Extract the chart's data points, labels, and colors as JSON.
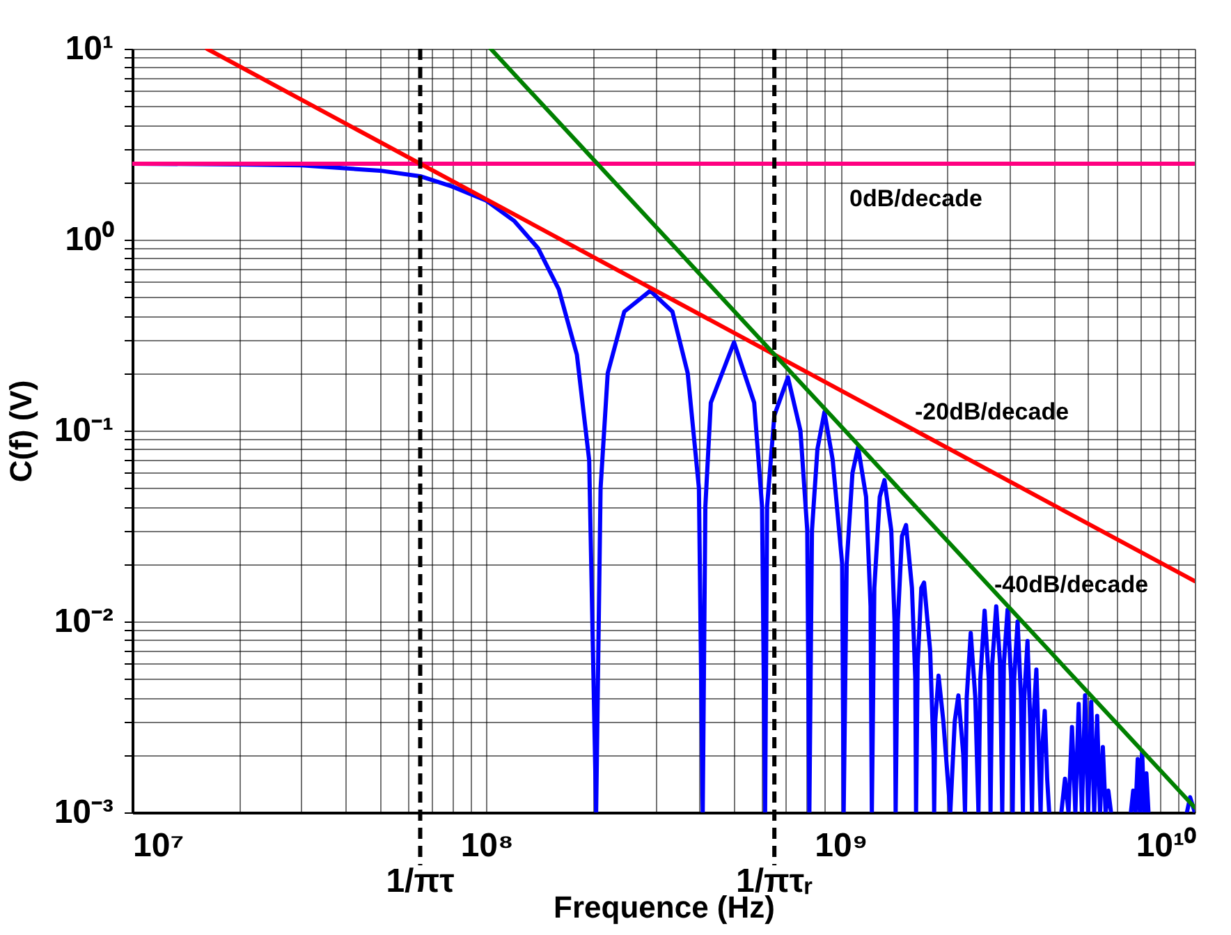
{
  "chart_data": {
    "type": "line",
    "xlabel": "Frequence (Hz)",
    "ylabel": "C(f) (V)",
    "log": "xy",
    "grid": true,
    "line_style": "solid",
    "xlim": [
      10000000.0,
      10000000000.0
    ],
    "ylim": [
      0.001,
      10
    ],
    "xticks": [
      {
        "value": 10000000.0,
        "label": "10⁷"
      },
      {
        "value": 100000000.0,
        "label": "10⁸"
      },
      {
        "value": 1000000000.0,
        "label": "10⁹"
      },
      {
        "value": 10000000000.0,
        "label": "10¹⁰"
      }
    ],
    "yticks": [
      {
        "value": 0.001,
        "label": "10⁻³"
      },
      {
        "value": 0.01,
        "label": "10⁻²"
      },
      {
        "value": 0.1,
        "label": "10⁻¹"
      },
      {
        "value": 1,
        "label": "10⁰"
      },
      {
        "value": 10,
        "label": "10¹"
      }
    ],
    "series": [
      {
        "color": "#0000ff",
        "x": [
          10000000.0,
          20000000.0,
          30000000.0,
          50000000.0,
          65000000.0,
          80000000.0,
          100000000.0,
          120000000.0,
          140000000.0,
          160000000.0,
          180000000.0,
          195000000.0,
          204000000.0,
          210000000.0,
          220000000.0,
          245000000.0,
          290000000.0,
          335000000.0,
          370000000.0,
          398000000.0,
          408000000.0,
          415000000.0,
          430000000.0,
          500000000.0,
          570000000.0,
          600000000.0,
          612000000.0,
          620000000.0,
          650000000.0,
          710000000.0,
          770000000.0,
          805000000.0,
          816000000.0,
          830000000.0,
          860000000.0,
          900000000.0,
          950000000.0,
          1010000000.0,
          1020000000.0,
          1040000000.0,
          1080000000.0,
          1120000000.0,
          1180000000.0,
          1215000000.0,
          1225000000.0,
          1245000000.0,
          1290000000.0,
          1330000000.0,
          1390000000.0,
          1420000000.0,
          1430000000.0,
          1450000000.0,
          1490000000.0,
          1530000000.0,
          1590000000.0,
          1625000000.0,
          1633000000.0,
          1650000000.0,
          1690000000.0,
          1720000000.0,
          1790000000.0,
          1830000000.0,
          1837000000.0,
          1850000000.0,
          1890000000.0,
          1950000000.0,
          2040000000.0,
          2100000000.0,
          2150000000.0,
          2220000000.0,
          2245000000.0,
          2270000000.0,
          2330000000.0,
          2400000000.0,
          2450000000.0,
          2480000000.0,
          2550000000.0,
          2620000000.0,
          2650000000.0,
          2680000000.0,
          2750000000.0,
          2820000000.0,
          2860000000.0,
          2890000000.0,
          2960000000.0,
          3030000000.0,
          3060000000.0,
          3090000000.0,
          3160000000.0,
          3230000000.0,
          3270000000.0,
          3300000000.0,
          3370000000.0,
          3430000000.0,
          3470000000.0,
          3500000000.0,
          3570000000.0,
          3630000000.0,
          3670000000.0,
          3700000000.0,
          3770000000.0,
          3830000000.0,
          3880000000.0,
          4000000000.0,
          4200000000.0,
          4300000000.0,
          4400000000.0,
          4500000000.0,
          4600000000.0,
          4700000000.0,
          4800000000.0,
          4900000000.0,
          5000000000.0,
          5100000000.0,
          5200000000.0,
          5300000000.0,
          5400000000.0,
          5500000000.0,
          5600000000.0,
          5700000000.0,
          5800000000.0,
          6200000000.0,
          6600000000.0,
          6700000000.0,
          6800000000.0,
          6900000000.0,
          7000000000.0,
          7100000000.0,
          7200000000.0,
          7300000000.0,
          7400000000.0,
          8500000000.0,
          9500000000.0,
          9700000000.0,
          10000000000.0
        ],
        "values": [
          2.5,
          2.48,
          2.45,
          2.3,
          2.15,
          1.9,
          1.6,
          1.25,
          0.9,
          0.55,
          0.25,
          0.07,
          0.001,
          0.05,
          0.2,
          0.42,
          0.54,
          0.42,
          0.2,
          0.05,
          0.001,
          0.04,
          0.14,
          0.29,
          0.14,
          0.04,
          0.001,
          0.04,
          0.12,
          0.19,
          0.1,
          0.03,
          0.001,
          0.03,
          0.08,
          0.125,
          0.07,
          0.02,
          0.001,
          0.02,
          0.06,
          0.082,
          0.045,
          0.012,
          0.001,
          0.015,
          0.045,
          0.055,
          0.03,
          0.01,
          0.001,
          0.01,
          0.028,
          0.032,
          0.015,
          0.005,
          0.001,
          0.006,
          0.015,
          0.016,
          0.007,
          0.002,
          0.001,
          0.003,
          0.0052,
          0.003,
          0.001,
          0.003,
          0.0041,
          0.002,
          0.001,
          0.004,
          0.0087,
          0.004,
          0.001,
          0.005,
          0.0114,
          0.005,
          0.001,
          0.006,
          0.012,
          0.006,
          0.001,
          0.006,
          0.0115,
          0.005,
          0.001,
          0.005,
          0.01,
          0.004,
          0.001,
          0.004,
          0.0079,
          0.003,
          0.001,
          0.003,
          0.0056,
          0.002,
          0.001,
          0.002,
          0.0034,
          0.0015,
          0.001,
          null,
          0.001,
          0.0015,
          0.001,
          0.0028,
          0.001,
          0.0037,
          0.001,
          0.0041,
          0.001,
          0.0038,
          0.001,
          0.0032,
          0.001,
          0.0022,
          0.001,
          0.0013,
          0.001,
          null,
          0.001,
          0.0013,
          0.001,
          0.0019,
          0.001,
          0.0021,
          0.001,
          0.0016,
          0.001,
          null,
          0.001,
          0.0012,
          0.001
        ]
      },
      {
        "color": "#ff0080",
        "x": [
          10000000.0,
          10000000000.0
        ],
        "values": [
          2.5,
          2.5
        ]
      },
      {
        "color": "#ff0000",
        "x": [
          16250000.0,
          10000000000.0
        ],
        "values": [
          10,
          0.01625
        ]
      },
      {
        "color": "#008000",
        "x": [
          102800000.0,
          10000000000.0
        ],
        "values": [
          10,
          0.00106
        ]
      }
    ],
    "ref_lines": [
      {
        "axis": "x",
        "value": 65000000.0,
        "label": "1/πτ",
        "color": "#000000",
        "line_style": "dashed"
      },
      {
        "axis": "x",
        "value": 650000000.0,
        "label": "1/πτᵣ",
        "color": "#000000",
        "line_style": "dashed"
      }
    ],
    "annotations": [
      "0dB/decade",
      "-20dB/decade",
      "-40dB/decade"
    ]
  }
}
